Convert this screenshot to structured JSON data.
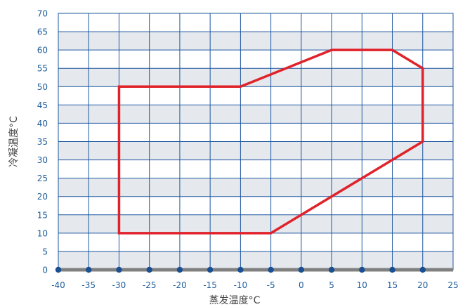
{
  "chart_data": {
    "type": "line",
    "title": "",
    "xlabel": "蒸发温度°C",
    "ylabel": "冷凝温度°C",
    "xlim": [
      -40,
      25
    ],
    "ylim": [
      0,
      70
    ],
    "x_ticks": [
      -40,
      -35,
      -30,
      -25,
      -20,
      -15,
      -10,
      -5,
      0,
      5,
      10,
      15,
      20,
      25
    ],
    "y_ticks": [
      0,
      5,
      10,
      15,
      20,
      25,
      30,
      35,
      40,
      45,
      50,
      55,
      60,
      65,
      70
    ],
    "x_tick_labels": [
      "-40",
      "-35",
      "-30",
      "-25",
      "-20",
      "-15",
      "-10",
      "-5",
      "0",
      "5",
      "10",
      "15",
      "20",
      "25"
    ],
    "y_tick_labels": [
      "0",
      "5",
      "10",
      "15",
      "20",
      "25",
      "30",
      "35",
      "40",
      "45",
      "50",
      "55",
      "60",
      "65",
      "70"
    ],
    "grid": true,
    "band_colors": [
      "#e5e8ed",
      "#ffffff"
    ],
    "grid_color": "#1e57a0",
    "series": [
      {
        "color": "#e0222a",
        "closed": true,
        "points": [
          [
            -30,
            10
          ],
          [
            -30,
            50
          ],
          [
            -10,
            50
          ],
          [
            5,
            60
          ],
          [
            15,
            60
          ],
          [
            20,
            55
          ],
          [
            20,
            35
          ],
          [
            -5,
            10
          ]
        ]
      }
    ],
    "baseline_markers": {
      "y": 0,
      "x": [
        -40,
        -35,
        -30,
        -25,
        -20,
        -15,
        -10,
        -5,
        0,
        5,
        10,
        15,
        20
      ],
      "color": "#1a4f91",
      "baseline_color": "#808080"
    }
  }
}
